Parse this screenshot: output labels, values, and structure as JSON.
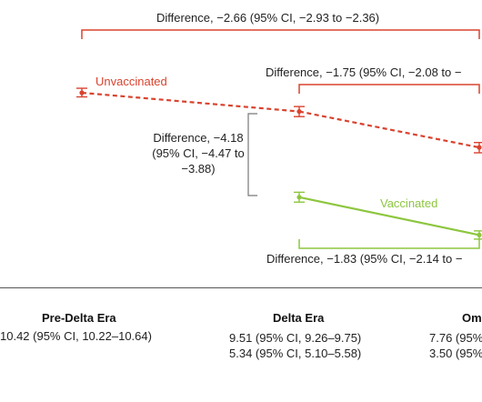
{
  "chart_data": {
    "type": "line",
    "categories": [
      "Pre-Delta Era",
      "Delta Era",
      "Om"
    ],
    "series": [
      {
        "name": "Unvaccinated",
        "color": "#d9432f",
        "style": "dashed",
        "values": [
          10.42,
          9.51,
          7.76
        ],
        "ci_low": [
          10.22,
          9.26,
          7.5
        ],
        "ci_high": [
          10.64,
          9.75,
          8.0
        ]
      },
      {
        "name": "Vaccinated",
        "color": "#8dc63f",
        "style": "solid",
        "values": [
          null,
          5.34,
          3.5
        ],
        "ci_low": [
          null,
          5.1,
          3.3
        ],
        "ci_high": [
          null,
          5.58,
          3.7
        ]
      }
    ],
    "annotations": {
      "top": "Difference, −2.66 (95% CI, −2.93 to −2.36)",
      "mid": "Difference, −1.75 (95% CI, −2.08 to −",
      "left": "Difference, −4.18 (95% CI, −4.47 to −3.88)",
      "bottom": "Difference, −1.83 (95% CI, −2.14 to −"
    }
  },
  "table": {
    "headers": [
      "Pre-Delta Era",
      "Delta Era",
      "Om"
    ],
    "rows": [
      [
        "10.42 (95% CI, 10.22–10.64)",
        "9.51 (95% CI, 9.26–9.75)",
        "7.76 (95%"
      ],
      [
        "",
        "5.34 (95% CI, 5.10–5.58)",
        "3.50 (95%"
      ]
    ]
  }
}
